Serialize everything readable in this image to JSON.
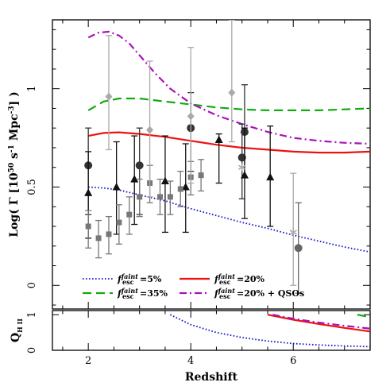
{
  "chart_data": [
    {
      "type": "scatter",
      "xlabel": "Redshift",
      "ylabel": "Log( Γ [10^50 s^-1 Mpc^-3] )",
      "ylabel_parts": {
        "pre": "Log( Γ [10",
        "exp1": "50",
        "mid": " s",
        "exp2": "-1",
        "mid2": " Mpc",
        "exp3": "-3",
        "post": "] )"
      },
      "xlim": [
        1.3,
        7.5
      ],
      "ylim": [
        -0.12,
        1.35
      ],
      "x_ticks": [
        2,
        4,
        6
      ],
      "y_ticks": [
        0,
        0.5,
        1
      ],
      "y_tick_labels": [
        "0",
        "0.5",
        "1"
      ],
      "series": [
        {
          "key": "f5",
          "name": "=5%",
          "label_prefix": "f",
          "sup": "faint",
          "sub": "esc",
          "style": "dotted",
          "color": "#1515cc",
          "x": [
            2.0,
            2.3,
            2.6,
            3.0,
            3.5,
            4.0,
            4.5,
            5.0,
            5.5,
            6.0,
            6.5,
            7.0,
            7.5
          ],
          "y": [
            0.5,
            0.495,
            0.485,
            0.46,
            0.43,
            0.39,
            0.355,
            0.32,
            0.29,
            0.255,
            0.225,
            0.195,
            0.17
          ]
        },
        {
          "key": "f20",
          "name": "=20%",
          "label_prefix": "f",
          "sup": "faint",
          "sub": "esc",
          "style": "solid",
          "color": "#ee1111",
          "x": [
            2.0,
            2.3,
            2.6,
            3.0,
            3.5,
            4.0,
            4.5,
            5.0,
            5.5,
            6.0,
            6.5,
            7.0,
            7.5
          ],
          "y": [
            0.76,
            0.775,
            0.778,
            0.77,
            0.755,
            0.735,
            0.715,
            0.7,
            0.69,
            0.68,
            0.675,
            0.675,
            0.68
          ]
        },
        {
          "key": "f35",
          "name": "=35%",
          "label_prefix": "f",
          "sup": "faint",
          "sub": "esc",
          "style": "dashed",
          "color": "#11aa11",
          "x": [
            2.0,
            2.3,
            2.6,
            3.0,
            3.5,
            4.0,
            4.5,
            5.0,
            5.5,
            6.0,
            6.5,
            7.0,
            7.5
          ],
          "y": [
            0.89,
            0.935,
            0.95,
            0.95,
            0.935,
            0.92,
            0.905,
            0.895,
            0.89,
            0.89,
            0.89,
            0.895,
            0.9
          ]
        },
        {
          "key": "fq",
          "name": "=20% + QSOs",
          "label_prefix": "f",
          "sup": "faint",
          "sub": "esc",
          "style": "dashdot",
          "color": "#aa11bb",
          "x": [
            2.0,
            2.2,
            2.4,
            2.6,
            2.8,
            3.0,
            3.3,
            3.6,
            4.0,
            4.5,
            5.0,
            5.5,
            6.0,
            6.5,
            7.0,
            7.5
          ],
          "y": [
            1.26,
            1.285,
            1.29,
            1.27,
            1.23,
            1.17,
            1.08,
            1.0,
            0.925,
            0.865,
            0.82,
            0.78,
            0.75,
            0.735,
            0.725,
            0.72
          ]
        }
      ],
      "points": [
        {
          "marker": "circle",
          "color": "#333333",
          "x": 2.0,
          "y": 0.61,
          "lo": 0.36,
          "hi": 0.8
        },
        {
          "marker": "circle",
          "color": "#333333",
          "x": 3.0,
          "y": 0.61,
          "lo": 0.36,
          "hi": 0.8
        },
        {
          "marker": "circle",
          "color": "#333333",
          "x": 4.0,
          "y": 0.8,
          "lo": 0.58,
          "hi": 0.98
        },
        {
          "marker": "circle",
          "color": "#333333",
          "x": 5.0,
          "y": 0.65,
          "lo": 0.44,
          "hi": 0.82
        },
        {
          "marker": "circle",
          "color": "#333333",
          "x": 5.05,
          "y": 0.78,
          "lo": 0.55,
          "hi": 1.02
        },
        {
          "marker": "circle",
          "color": "#666666",
          "x": 6.1,
          "y": 0.19,
          "lo": -0.04,
          "hi": 0.42
        },
        {
          "marker": "triangle",
          "color": "#111111",
          "x": 2.0,
          "y": 0.47,
          "lo": 0.24,
          "hi": 0.68
        },
        {
          "marker": "triangle",
          "color": "#111111",
          "x": 2.55,
          "y": 0.5,
          "lo": 0.26,
          "hi": 0.73
        },
        {
          "marker": "triangle",
          "color": "#111111",
          "x": 2.9,
          "y": 0.54,
          "lo": 0.31,
          "hi": 0.76
        },
        {
          "marker": "triangle",
          "color": "#111111",
          "x": 3.5,
          "y": 0.53,
          "lo": 0.27,
          "hi": 0.76
        },
        {
          "marker": "triangle",
          "color": "#111111",
          "x": 3.9,
          "y": 0.5,
          "lo": 0.27,
          "hi": 0.72
        },
        {
          "marker": "triangle",
          "color": "#111111",
          "x": 4.55,
          "y": 0.74,
          "lo": 0.52,
          "hi": 0.77
        },
        {
          "marker": "triangle",
          "color": "#111111",
          "x": 5.05,
          "y": 0.56,
          "lo": 0.34,
          "hi": 0.8
        },
        {
          "marker": "triangle",
          "color": "#111111",
          "x": 5.55,
          "y": 0.55,
          "lo": 0.3,
          "hi": 0.81
        },
        {
          "marker": "square",
          "color": "#777777",
          "x": 2.0,
          "y": 0.3,
          "lo": 0.19,
          "hi": 0.38
        },
        {
          "marker": "square",
          "color": "#777777",
          "x": 2.2,
          "y": 0.24,
          "lo": 0.14,
          "hi": 0.33
        },
        {
          "marker": "square",
          "color": "#777777",
          "x": 2.4,
          "y": 0.26,
          "lo": 0.16,
          "hi": 0.35
        },
        {
          "marker": "square",
          "color": "#777777",
          "x": 2.6,
          "y": 0.32,
          "lo": 0.21,
          "hi": 0.41
        },
        {
          "marker": "square",
          "color": "#777777",
          "x": 2.8,
          "y": 0.36,
          "lo": 0.26,
          "hi": 0.45
        },
        {
          "marker": "square",
          "color": "#777777",
          "x": 3.0,
          "y": 0.45,
          "lo": 0.35,
          "hi": 0.54
        },
        {
          "marker": "square",
          "color": "#777777",
          "x": 3.2,
          "y": 0.52,
          "lo": 0.42,
          "hi": 0.61
        },
        {
          "marker": "square",
          "color": "#777777",
          "x": 3.4,
          "y": 0.45,
          "lo": 0.36,
          "hi": 0.54
        },
        {
          "marker": "square",
          "color": "#777777",
          "x": 3.6,
          "y": 0.45,
          "lo": 0.36,
          "hi": 0.53
        },
        {
          "marker": "square",
          "color": "#777777",
          "x": 3.8,
          "y": 0.49,
          "lo": 0.4,
          "hi": 0.58
        },
        {
          "marker": "square",
          "color": "#777777",
          "x": 4.0,
          "y": 0.55,
          "lo": 0.46,
          "hi": 0.63
        },
        {
          "marker": "square",
          "color": "#777777",
          "x": 4.2,
          "y": 0.56,
          "lo": 0.48,
          "hi": 0.64
        },
        {
          "marker": "diamond",
          "color": "#aaaaaa",
          "x": 2.4,
          "y": 0.96,
          "lo": 0.69,
          "hi": 1.27
        },
        {
          "marker": "diamond",
          "color": "#aaaaaa",
          "x": 3.2,
          "y": 0.79,
          "lo": 0.45,
          "hi": 1.14
        },
        {
          "marker": "diamond",
          "color": "#aaaaaa",
          "x": 4.0,
          "y": 0.86,
          "lo": 0.52,
          "hi": 1.21
        },
        {
          "marker": "diamond",
          "color": "#aaaaaa",
          "x": 4.8,
          "y": 0.98,
          "lo": 0.73,
          "hi": 1.35
        },
        {
          "marker": "star",
          "color": "#aaaaaa",
          "x": 5.0,
          "y": 0.6,
          "lo": 0.6,
          "hi": 0.6
        },
        {
          "marker": "star",
          "color": "#aaaaaa",
          "x": 6.0,
          "y": 0.27,
          "lo": 0.0,
          "hi": 0.57
        }
      ],
      "legend": {
        "placement": "bottom"
      }
    },
    {
      "type": "line",
      "ylabel": "Q_H II",
      "ylabel_parts": {
        "main": "Q",
        "sub": "H II"
      },
      "ylim": [
        0,
        1.05
      ],
      "y_ticks": [
        0,
        1
      ],
      "y_tick_labels": [
        "0",
        "1"
      ],
      "series": [
        {
          "key": "f5",
          "style": "dotted",
          "color": "#1515cc",
          "x": [
            3.6,
            4.0,
            4.5,
            5.0,
            5.5,
            6.0,
            6.5,
            7.0,
            7.5
          ],
          "y": [
            1.0,
            0.72,
            0.5,
            0.36,
            0.26,
            0.19,
            0.15,
            0.12,
            0.1
          ]
        },
        {
          "key": "f20",
          "style": "solid",
          "color": "#ee1111",
          "x": [
            5.5,
            6.0,
            6.5,
            7.0,
            7.5
          ],
          "y": [
            1.0,
            0.86,
            0.74,
            0.63,
            0.53
          ]
        },
        {
          "key": "fq",
          "style": "dashdot",
          "color": "#aa11bb",
          "x": [
            5.6,
            6.0,
            6.5,
            7.0,
            7.5
          ],
          "y": [
            1.0,
            0.89,
            0.78,
            0.69,
            0.61
          ]
        },
        {
          "key": "f35",
          "style": "dashed",
          "color": "#11aa11",
          "x": [
            7.25,
            7.5
          ],
          "y": [
            1.0,
            0.93
          ]
        }
      ]
    }
  ]
}
